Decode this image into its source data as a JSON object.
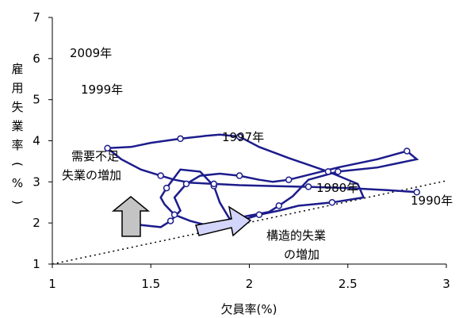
{
  "chart_data": {
    "type": "line",
    "xlabel": "欠員率(%)",
    "ylabel": [
      "雇",
      "用",
      "失",
      "業",
      "率",
      "(",
      "%",
      ")"
    ],
    "xlim": [
      1,
      3
    ],
    "ylim": [
      1,
      7
    ],
    "x_ticks": [
      "1",
      "1.5",
      "2",
      "2.5",
      "3"
    ],
    "y_ticks": [
      "1",
      "2",
      "3",
      "4",
      "5",
      "6",
      "7"
    ],
    "grid": false,
    "line_color": "#1c1c8c",
    "series": [
      {
        "points": [
          [
            1.38,
            2.05
          ],
          [
            1.45,
            1.95
          ],
          [
            1.55,
            1.9
          ],
          [
            1.6,
            2.05
          ],
          [
            1.65,
            2.3
          ],
          [
            1.62,
            2.62
          ],
          [
            1.68,
            2.95
          ],
          [
            1.75,
            3.15
          ],
          [
            1.85,
            3.2
          ],
          [
            1.95,
            3.15
          ],
          [
            2.05,
            3.05
          ],
          [
            2.12,
            3.0
          ],
          [
            2.2,
            3.05
          ],
          [
            2.45,
            3.35
          ],
          [
            2.65,
            3.55
          ],
          [
            2.8,
            3.75
          ],
          [
            2.85,
            3.55
          ],
          [
            2.65,
            3.35
          ],
          [
            2.45,
            3.25
          ],
          [
            2.3,
            3.05
          ],
          [
            2.22,
            2.65
          ],
          [
            2.15,
            2.42
          ],
          [
            2.1,
            2.27
          ],
          [
            2.0,
            2.18
          ],
          [
            1.95,
            2.13
          ],
          [
            1.9,
            2.1
          ],
          [
            1.85,
            2.5
          ],
          [
            1.82,
            2.9
          ],
          [
            1.75,
            3.25
          ],
          [
            1.65,
            3.3
          ],
          [
            1.58,
            2.85
          ],
          [
            1.55,
            2.62
          ],
          [
            1.57,
            2.45
          ],
          [
            1.62,
            2.2
          ],
          [
            1.7,
            2.05
          ],
          [
            1.78,
            1.95
          ],
          [
            1.85,
            1.92
          ],
          [
            1.9,
            1.95
          ],
          [
            1.95,
            2.05
          ],
          [
            2.05,
            2.2
          ],
          [
            2.15,
            2.3
          ],
          [
            2.25,
            2.42
          ],
          [
            2.42,
            2.5
          ],
          [
            2.58,
            2.62
          ],
          [
            2.55,
            2.95
          ],
          [
            2.4,
            3.25
          ],
          [
            2.2,
            3.58
          ],
          [
            2.05,
            3.85
          ],
          [
            1.95,
            4.1
          ],
          [
            1.85,
            4.15
          ],
          [
            1.78,
            4.12
          ],
          [
            1.65,
            4.05
          ],
          [
            1.5,
            3.95
          ],
          [
            1.4,
            3.85
          ],
          [
            1.28,
            3.82
          ],
          [
            1.35,
            3.55
          ],
          [
            1.45,
            3.3
          ],
          [
            1.55,
            3.15
          ],
          [
            1.62,
            3.05
          ],
          [
            1.7,
            2.98
          ],
          [
            1.82,
            2.95
          ],
          [
            1.95,
            2.92
          ],
          [
            2.1,
            2.9
          ],
          [
            2.3,
            2.88
          ],
          [
            2.5,
            2.85
          ],
          [
            2.7,
            2.8
          ],
          [
            2.85,
            2.75
          ]
        ]
      }
    ],
    "annotations": [
      {
        "text": "2009年"
      },
      {
        "text": "1999年"
      },
      {
        "text": "1997年"
      },
      {
        "text": "1980年"
      },
      {
        "text": "1990年"
      },
      {
        "text": "需要不足"
      },
      {
        "text": "失業の増加"
      },
      {
        "text": "構造的失業"
      },
      {
        "text": "の増加"
      }
    ]
  }
}
